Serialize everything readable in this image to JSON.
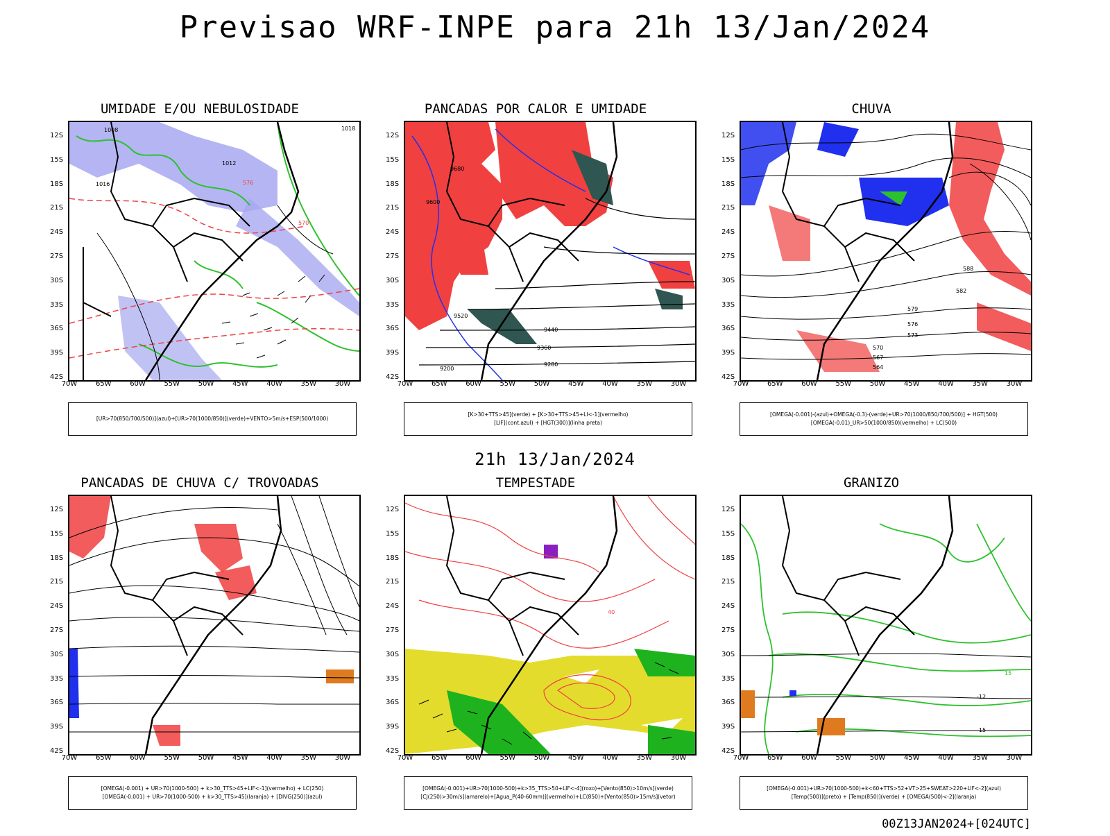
{
  "main_title": "Previsao WRF-INPE  para 21h 13/Jan/2024",
  "mid_title": "21h 13/Jan/2024",
  "footer_stamp": "00Z13JAN2024+[024UTC]",
  "lat_ticks": [
    "12S",
    "15S",
    "18S",
    "21S",
    "24S",
    "27S",
    "30S",
    "33S",
    "36S",
    "39S",
    "42S"
  ],
  "lon_ticks": [
    "70W",
    "65W",
    "60W",
    "55W",
    "50W",
    "45W",
    "40W",
    "35W",
    "30W"
  ],
  "colors": {
    "blue_fill": "#a7a8f0",
    "green": "#2ec12e",
    "red": "#f04040",
    "dark_teal": "#2f5650",
    "blue": "#2030ee",
    "yellow": "#e4dc2c",
    "orange": "#e07a1e",
    "purple": "#8a20c0"
  },
  "panels": [
    {
      "title": "UMIDADE E/OU NEBULOSIDADE",
      "legend_lines": [
        "[UR>70(850/700/500)](azul)+[UR>70(1000/850)](verde)+VENTO>5m/s+ESP(500/1000)"
      ],
      "labels": [
        "1008",
        "1012",
        "1016",
        "1018",
        "570",
        "576"
      ]
    },
    {
      "title": "PANCADAS POR CALOR E UMIDADE",
      "legend_lines": [
        "[K>30+TTS>45](verde) + [K>30+TTS>45+LI<-1](vermelho)",
        "[LIF](cont.azul) + [HGT(300)](linha preta)"
      ],
      "labels": [
        "9680",
        "9600",
        "9520",
        "9440",
        "9360",
        "9280",
        "9200"
      ]
    },
    {
      "title": "CHUVA",
      "legend_lines": [
        "[OMEGA(-0.001)-(azul)+OMEGA(-0.3)-(verde)+UR>70(1000/850/700/500)] + HGT(500)",
        "[OMEGA(-0.01)_UR>50(1000/850)(vermelho) + LC(500)"
      ],
      "labels": [
        "588",
        "582",
        "579",
        "576",
        "573",
        "570",
        "567",
        "564"
      ]
    },
    {
      "title": "PANCADAS DE CHUVA C/ TROVOADAS",
      "legend_lines": [
        "[OMEGA(-0.001) + UR>70(1000-500) + k>30_TTS>45+LIF<-1](vermelho) + LC(250)",
        "[OMEGA(-0.001) + UR>70(1000-500) + k>30_TTS>45](laranja) + [DIVG(250)](azul)"
      ],
      "labels": []
    },
    {
      "title": "TEMPESTADE",
      "legend_lines": [
        "[OMEGA(-0.001)+UR>70(1000-500)+k>35_TTS>50+LIF<-4](roxo)+[Vento(850)>10m/s](verde)",
        "[CJ(250)>30m/s](amarelo)+[Agua_P(40-60mm)](vermelho)+LC(850)+[Vento(850)>15m/s](vetor)"
      ],
      "labels": [
        "40"
      ]
    },
    {
      "title": "GRANIZO",
      "legend_lines": [
        "[OMEGA(-0.001)+UR>70(1000-500)+k<60+TTS>52+VT>25+SWEAT>220+LIF<-2](azul)",
        "[Temp(500)](preto) + [Temp(850)](verde) + [OMEGA(500)<-2](laranja)"
      ],
      "labels": [
        "-12",
        "-15",
        "15"
      ]
    }
  ]
}
